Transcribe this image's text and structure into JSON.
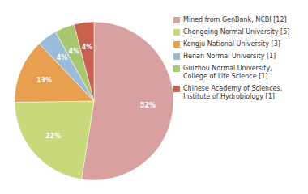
{
  "chart_data": {
    "type": "pie",
    "categories": [
      "Mined from GenBank, NCBI [12]",
      "Chongqing Normal University [5]",
      "Kongju National University [3]",
      "Henan Normal University [1]",
      "Guizhou Normal University,\nCollege of Life Science [1]",
      "Chinese Academy of Sciences,\nInstitute of Hydrobiology [1]"
    ],
    "values": [
      52,
      22,
      13,
      4,
      4,
      4
    ],
    "value_labels": [
      "52%",
      "22%",
      "13%",
      "4%",
      "4%",
      "4%"
    ],
    "colors": [
      "#d9a0a0",
      "#c8d87a",
      "#e8a050",
      "#9bbcd8",
      "#a8c870",
      "#c86050"
    ],
    "data_labels": true,
    "legend": "right"
  }
}
